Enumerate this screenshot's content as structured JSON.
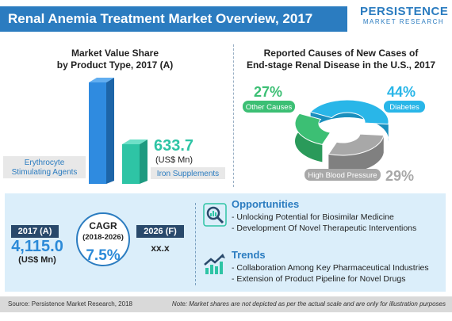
{
  "header": {
    "title": "Renal Anemia Treatment Market Overview, 2017"
  },
  "logo": {
    "main": "PERSISTENCE",
    "sub": "MARKET RESEARCH"
  },
  "left_panel": {
    "title_line1": "Market Value Share",
    "title_line2": "by Product Type, 2017 (A)",
    "esa_label_line1": "Erythrocyte",
    "esa_label_line2": "Stimulating Agents",
    "iron_value": "633.7",
    "iron_unit": "(US$ Mn)",
    "iron_label": "Iron Supplements"
  },
  "right_panel": {
    "title_line1": "Reported Causes of New Cases of",
    "title_line2": "End-stage Renal Disease in the U.S., 2017",
    "other_pct": "27%",
    "other_label": "Other Causes",
    "diabetes_pct": "44%",
    "diabetes_label": "Diabetes",
    "hbp_label": "High Blood Pressure",
    "hbp_pct": "29%"
  },
  "stats": {
    "year_2017": "2017 (A)",
    "value_2017": "4,115.0",
    "unit_2017": "(US$ Mn)",
    "cagr_label": "CAGR",
    "cagr_period": "(2018-2026)",
    "cagr_value": "7.5%",
    "year_2026": "2026 (F)",
    "value_2026": "xx.x"
  },
  "opportunities": {
    "heading": "Opportunities",
    "items": [
      "- Unlocking Potential for Biosimilar Medicine",
      "- Development Of Novel Therapeutic Interventions"
    ]
  },
  "trends": {
    "heading": "Trends",
    "items": [
      "- Collaboration Among Key Pharmaceutical Industries",
      "- Extension of Product Pipeline for Novel Drugs"
    ]
  },
  "footer": {
    "source": "Source: Persistence Market Research, 2018",
    "note": "Note: Market shares are not depicted as per the actual scale and are only for illustration purposes"
  },
  "colors": {
    "brand_blue": "#2b7cc0",
    "esa_blue": "#2f8be0",
    "iron_teal": "#2ec4a5",
    "diabetes_cyan": "#29b6e8",
    "other_green": "#3cbf74",
    "hbp_gray": "#a8a8a8",
    "dark_navy": "#29496b"
  },
  "chart_data": [
    {
      "type": "bar",
      "title": "Market Value Share by Product Type, 2017 (A)",
      "categories": [
        "Erythrocyte Stimulating Agents",
        "Iron Supplements"
      ],
      "values": [
        null,
        633.7
      ],
      "unit": "US$ Mn"
    },
    {
      "type": "pie",
      "title": "Reported Causes of New Cases of End-stage Renal Disease in the U.S., 2017",
      "categories": [
        "Diabetes",
        "High Blood Pressure",
        "Other Causes"
      ],
      "values": [
        44,
        29,
        27
      ],
      "unit": "%"
    }
  ]
}
